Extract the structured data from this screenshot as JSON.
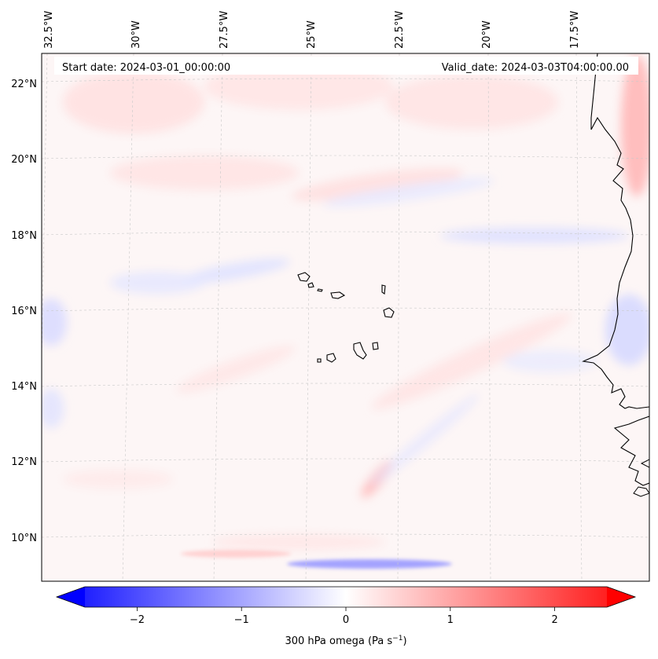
{
  "header": {
    "start_date": "Start date: 2024-03-01_00:00:00",
    "valid_date": "Valid_date: 2024-03-03T04:00:00.00"
  },
  "map": {
    "longitude_labels": [
      "32.5°W",
      "30°W",
      "27.5°W",
      "25°W",
      "22.5°W",
      "20°W",
      "17.5°W"
    ],
    "latitude_labels": [
      "22°N",
      "20°N",
      "18°N",
      "16°N",
      "14°N",
      "12°N",
      "10°N"
    ],
    "features": [
      "Cape Verde islands",
      "West African coastline"
    ]
  },
  "colorbar": {
    "label": "300 hPa omega (Pa s",
    "label_sup": "−1",
    "label_end": ")",
    "ticks": [
      "−2",
      "−1",
      "0",
      "1",
      "2"
    ],
    "range": [
      -2.5,
      2.5
    ],
    "colormap": "bwr",
    "color_low": "#0000ff",
    "color_mid": "#ffffff",
    "color_high": "#ff0000"
  }
}
